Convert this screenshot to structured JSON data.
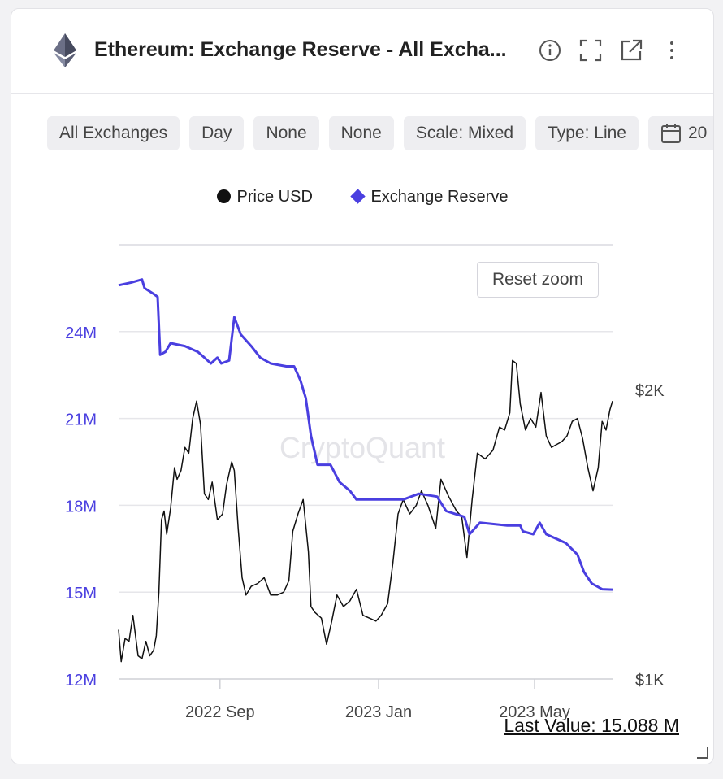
{
  "header": {
    "title": "Ethereum: Exchange Reserve - All Excha...",
    "logo_icon": "ethereum-icon",
    "icons": [
      "info-icon",
      "fullscreen-icon",
      "external-link-icon",
      "more-vertical-icon"
    ]
  },
  "chips": [
    {
      "label": "All Exchanges"
    },
    {
      "label": "Day"
    },
    {
      "label": "None"
    },
    {
      "label": "None"
    },
    {
      "label": "Scale: Mixed"
    },
    {
      "label": "Type: Line"
    },
    {
      "label": "20",
      "icon": "calendar-icon"
    }
  ],
  "reset_zoom": "Reset zoom",
  "watermark": "CryptoQuant",
  "last_value": "Last Value: 15.088 M",
  "colors": {
    "reserve": "#4a3fe0",
    "price": "#111111"
  },
  "chart_data": {
    "type": "line",
    "legend_position": "top-center",
    "grid": true,
    "legend": [
      "Price USD",
      "Exchange Reserve"
    ],
    "x_ticks": [
      {
        "label": "2022 Sep",
        "date": "2022-09-01"
      },
      {
        "label": "2023 Jan",
        "date": "2023-01-01"
      },
      {
        "label": "2023 May",
        "date": "2023-05-01"
      }
    ],
    "x_range": [
      "2022-06-15",
      "2023-06-30"
    ],
    "y_left": {
      "ticks": [
        "24M",
        "21M",
        "18M",
        "15M",
        "12M"
      ],
      "values": [
        24,
        21,
        18,
        15,
        12
      ],
      "range": [
        12,
        27
      ],
      "unit": "M"
    },
    "y_right": {
      "ticks": [
        "$2K",
        "$1K"
      ],
      "values": [
        2000,
        1000
      ],
      "range": [
        1000,
        2500
      ]
    },
    "series": [
      {
        "name": "Exchange Reserve",
        "axis": "left",
        "points": [
          [
            "2022-06-15",
            25.6
          ],
          [
            "2022-06-25",
            25.7
          ],
          [
            "2022-07-03",
            25.8
          ],
          [
            "2022-07-05",
            25.5
          ],
          [
            "2022-07-12",
            25.3
          ],
          [
            "2022-07-15",
            25.2
          ],
          [
            "2022-07-17",
            23.2
          ],
          [
            "2022-07-21",
            23.3
          ],
          [
            "2022-07-25",
            23.6
          ],
          [
            "2022-08-05",
            23.5
          ],
          [
            "2022-08-15",
            23.3
          ],
          [
            "2022-08-20",
            23.1
          ],
          [
            "2022-08-25",
            22.9
          ],
          [
            "2022-08-30",
            23.1
          ],
          [
            "2022-09-02",
            22.9
          ],
          [
            "2022-09-08",
            23.0
          ],
          [
            "2022-09-12",
            24.5
          ],
          [
            "2022-09-17",
            23.9
          ],
          [
            "2022-09-25",
            23.5
          ],
          [
            "2022-10-02",
            23.1
          ],
          [
            "2022-10-10",
            22.9
          ],
          [
            "2022-10-22",
            22.8
          ],
          [
            "2022-10-28",
            22.8
          ],
          [
            "2022-11-02",
            22.3
          ],
          [
            "2022-11-06",
            21.7
          ],
          [
            "2022-11-10",
            20.4
          ],
          [
            "2022-11-15",
            19.4
          ],
          [
            "2022-11-25",
            19.4
          ],
          [
            "2022-12-02",
            18.8
          ],
          [
            "2022-12-10",
            18.5
          ],
          [
            "2022-12-15",
            18.2
          ],
          [
            "2022-12-25",
            18.2
          ],
          [
            "2023-01-10",
            18.2
          ],
          [
            "2023-01-20",
            18.2
          ],
          [
            "2023-02-01",
            18.4
          ],
          [
            "2023-02-15",
            18.3
          ],
          [
            "2023-02-22",
            17.8
          ],
          [
            "2023-03-01",
            17.7
          ],
          [
            "2023-03-08",
            17.6
          ],
          [
            "2023-03-12",
            17.0
          ],
          [
            "2023-03-20",
            17.4
          ],
          [
            "2023-04-10",
            17.3
          ],
          [
            "2023-04-20",
            17.3
          ],
          [
            "2023-04-22",
            17.1
          ],
          [
            "2023-04-30",
            17.0
          ],
          [
            "2023-05-05",
            17.4
          ],
          [
            "2023-05-10",
            17.0
          ],
          [
            "2023-05-25",
            16.7
          ],
          [
            "2023-06-03",
            16.3
          ],
          [
            "2023-06-08",
            15.7
          ],
          [
            "2023-06-14",
            15.3
          ],
          [
            "2023-06-22",
            15.1
          ],
          [
            "2023-06-30",
            15.088
          ]
        ]
      },
      {
        "name": "Price USD",
        "axis": "right",
        "points": [
          [
            "2022-06-15",
            1170
          ],
          [
            "2022-06-17",
            1060
          ],
          [
            "2022-06-20",
            1140
          ],
          [
            "2022-06-23",
            1130
          ],
          [
            "2022-06-26",
            1220
          ],
          [
            "2022-06-30",
            1080
          ],
          [
            "2022-07-03",
            1070
          ],
          [
            "2022-07-06",
            1130
          ],
          [
            "2022-07-09",
            1080
          ],
          [
            "2022-07-12",
            1100
          ],
          [
            "2022-07-14",
            1150
          ],
          [
            "2022-07-16",
            1300
          ],
          [
            "2022-07-18",
            1550
          ],
          [
            "2022-07-20",
            1580
          ],
          [
            "2022-07-22",
            1500
          ],
          [
            "2022-07-25",
            1590
          ],
          [
            "2022-07-28",
            1730
          ],
          [
            "2022-07-30",
            1690
          ],
          [
            "2022-08-02",
            1720
          ],
          [
            "2022-08-05",
            1800
          ],
          [
            "2022-08-08",
            1780
          ],
          [
            "2022-08-11",
            1900
          ],
          [
            "2022-08-14",
            1960
          ],
          [
            "2022-08-17",
            1880
          ],
          [
            "2022-08-20",
            1640
          ],
          [
            "2022-08-23",
            1620
          ],
          [
            "2022-08-26",
            1680
          ],
          [
            "2022-08-30",
            1550
          ],
          [
            "2022-09-03",
            1570
          ],
          [
            "2022-09-06",
            1670
          ],
          [
            "2022-09-10",
            1750
          ],
          [
            "2022-09-12",
            1720
          ],
          [
            "2022-09-15",
            1520
          ],
          [
            "2022-09-18",
            1350
          ],
          [
            "2022-09-21",
            1290
          ],
          [
            "2022-09-25",
            1320
          ],
          [
            "2022-09-30",
            1330
          ],
          [
            "2022-10-05",
            1350
          ],
          [
            "2022-10-10",
            1290
          ],
          [
            "2022-10-15",
            1290
          ],
          [
            "2022-10-20",
            1300
          ],
          [
            "2022-10-24",
            1340
          ],
          [
            "2022-10-27",
            1510
          ],
          [
            "2022-10-31",
            1570
          ],
          [
            "2022-11-04",
            1620
          ],
          [
            "2022-11-08",
            1440
          ],
          [
            "2022-11-10",
            1250
          ],
          [
            "2022-11-13",
            1230
          ],
          [
            "2022-11-18",
            1210
          ],
          [
            "2022-11-22",
            1120
          ],
          [
            "2022-11-26",
            1200
          ],
          [
            "2022-11-30",
            1290
          ],
          [
            "2022-12-05",
            1250
          ],
          [
            "2022-12-10",
            1270
          ],
          [
            "2022-12-15",
            1310
          ],
          [
            "2022-12-20",
            1220
          ],
          [
            "2022-12-25",
            1210
          ],
          [
            "2022-12-30",
            1200
          ],
          [
            "2023-01-03",
            1220
          ],
          [
            "2023-01-08",
            1260
          ],
          [
            "2023-01-12",
            1400
          ],
          [
            "2023-01-16",
            1570
          ],
          [
            "2023-01-20",
            1620
          ],
          [
            "2023-01-25",
            1570
          ],
          [
            "2023-01-30",
            1600
          ],
          [
            "2023-02-03",
            1650
          ],
          [
            "2023-02-08",
            1600
          ],
          [
            "2023-02-14",
            1520
          ],
          [
            "2023-02-18",
            1690
          ],
          [
            "2023-02-24",
            1630
          ],
          [
            "2023-03-02",
            1580
          ],
          [
            "2023-03-06",
            1560
          ],
          [
            "2023-03-10",
            1420
          ],
          [
            "2023-03-14",
            1620
          ],
          [
            "2023-03-18",
            1780
          ],
          [
            "2023-03-24",
            1760
          ],
          [
            "2023-03-30",
            1790
          ],
          [
            "2023-04-04",
            1870
          ],
          [
            "2023-04-08",
            1860
          ],
          [
            "2023-04-12",
            1920
          ],
          [
            "2023-04-14",
            2100
          ],
          [
            "2023-04-17",
            2090
          ],
          [
            "2023-04-20",
            1950
          ],
          [
            "2023-04-24",
            1860
          ],
          [
            "2023-04-28",
            1900
          ],
          [
            "2023-05-02",
            1870
          ],
          [
            "2023-05-06",
            1990
          ],
          [
            "2023-05-10",
            1840
          ],
          [
            "2023-05-14",
            1800
          ],
          [
            "2023-05-18",
            1810
          ],
          [
            "2023-05-22",
            1820
          ],
          [
            "2023-05-26",
            1840
          ],
          [
            "2023-05-30",
            1890
          ],
          [
            "2023-06-03",
            1900
          ],
          [
            "2023-06-07",
            1830
          ],
          [
            "2023-06-11",
            1730
          ],
          [
            "2023-06-15",
            1650
          ],
          [
            "2023-06-19",
            1730
          ],
          [
            "2023-06-22",
            1890
          ],
          [
            "2023-06-25",
            1860
          ],
          [
            "2023-06-28",
            1930
          ],
          [
            "2023-06-30",
            1960
          ]
        ]
      }
    ]
  }
}
